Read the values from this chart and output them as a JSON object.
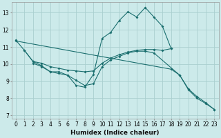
{
  "xlabel": "Humidex (Indice chaleur)",
  "background_color": "#cceaea",
  "grid_color": "#aacfcf",
  "line_color": "#1a6e6e",
  "xlim": [
    -0.5,
    23.5
  ],
  "ylim": [
    6.8,
    13.6
  ],
  "yticks": [
    7,
    8,
    9,
    10,
    11,
    12,
    13
  ],
  "xticks": [
    0,
    1,
    2,
    3,
    4,
    5,
    6,
    7,
    8,
    9,
    10,
    11,
    12,
    13,
    14,
    15,
    16,
    17,
    18,
    19,
    20,
    21,
    22,
    23
  ],
  "lines": [
    {
      "x": [
        0,
        1,
        2,
        3,
        4,
        5,
        6,
        7,
        8,
        9,
        10,
        11,
        12,
        13,
        14,
        15,
        16,
        17,
        18
      ],
      "y": [
        11.4,
        10.8,
        10.15,
        9.9,
        9.55,
        9.55,
        9.35,
        8.75,
        8.65,
        9.4,
        11.5,
        11.85,
        12.55,
        13.05,
        12.75,
        13.3,
        12.75,
        12.2,
        10.9
      ],
      "marker": true
    },
    {
      "x": [
        1,
        2,
        3,
        4,
        5,
        6,
        7,
        8,
        9,
        10,
        11,
        12,
        13,
        14,
        15,
        16,
        17,
        18
      ],
      "y": [
        10.8,
        10.15,
        10.05,
        9.85,
        9.75,
        9.65,
        9.6,
        9.55,
        9.6,
        10.05,
        10.35,
        10.55,
        10.7,
        10.8,
        10.85,
        10.85,
        10.8,
        10.9
      ],
      "marker": true
    },
    {
      "x": [
        2,
        3,
        4,
        5,
        6,
        7,
        8,
        9,
        10,
        11,
        12,
        13,
        14,
        15,
        16,
        19,
        20,
        21,
        22,
        23
      ],
      "y": [
        10.05,
        9.85,
        9.55,
        9.45,
        9.35,
        9.05,
        8.75,
        8.85,
        9.85,
        10.25,
        10.45,
        10.65,
        10.75,
        10.75,
        10.65,
        9.35,
        8.5,
        8.0,
        7.7,
        7.35
      ],
      "marker": true
    },
    {
      "x": [
        0,
        18,
        19,
        20,
        21,
        22,
        23
      ],
      "y": [
        11.35,
        9.7,
        9.35,
        8.55,
        8.1,
        7.75,
        7.35
      ],
      "marker": true
    }
  ]
}
